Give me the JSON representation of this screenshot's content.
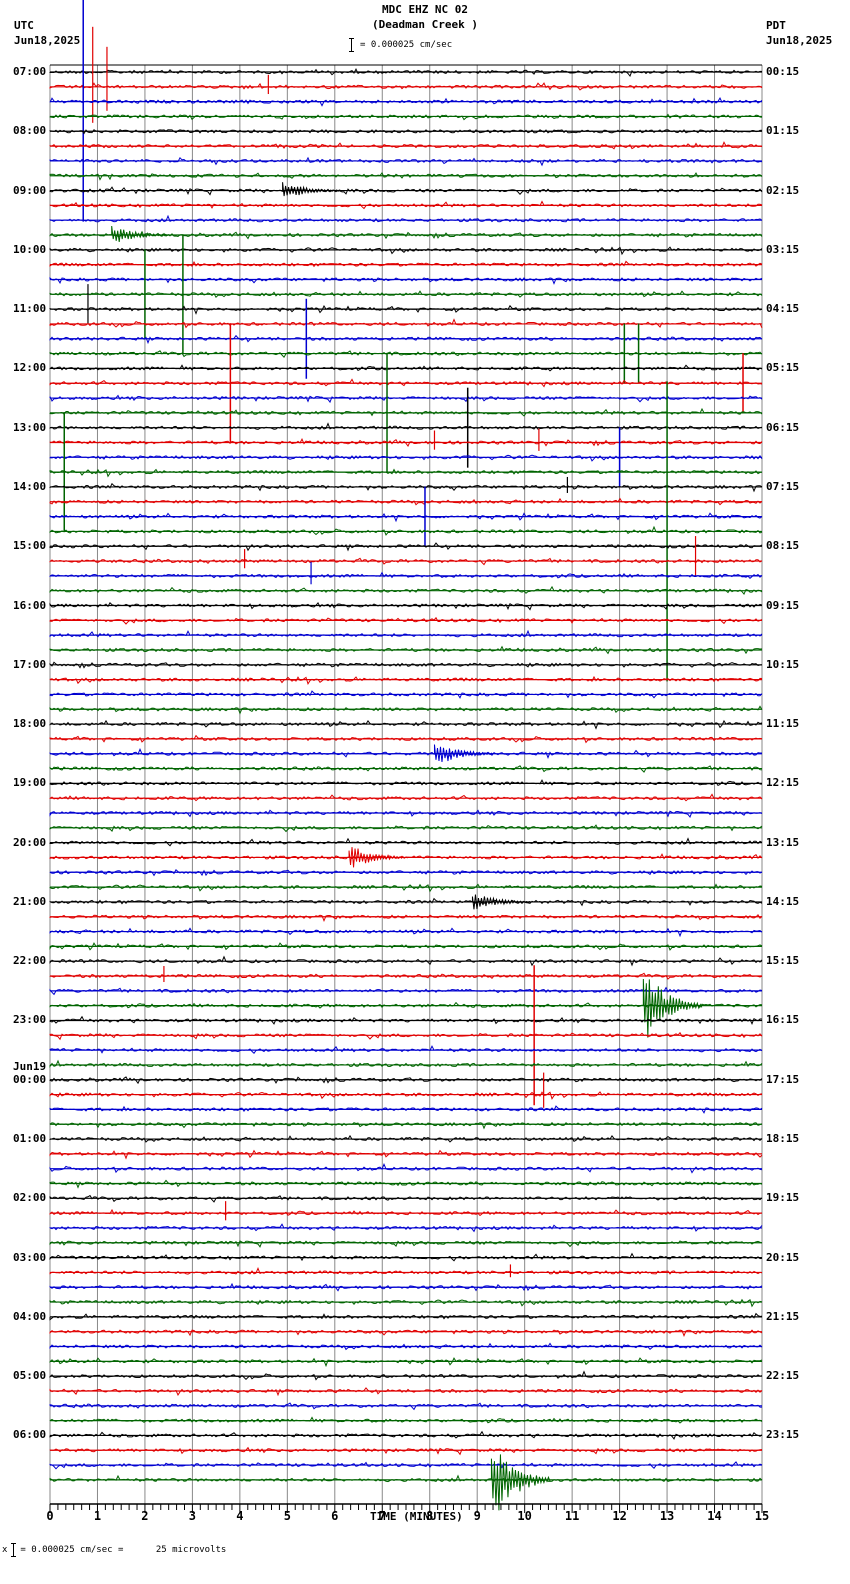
{
  "header": {
    "station": "MDC EHZ NC 02",
    "location": "(Deadman Creek )",
    "left_tz": "UTC",
    "left_date": "Jun18,2025",
    "right_tz": "PDT",
    "right_date": "Jun18,2025",
    "scale_text": "= 0.000025 cm/sec"
  },
  "footer": {
    "prefix": "x",
    "scale_text": "= 0.000025 cm/sec =      25 microvolts"
  },
  "colors": {
    "trace_cycle": [
      "#000000",
      "#e00000",
      "#0000d0",
      "#006400"
    ],
    "grid": "#888888",
    "axis": "#000000"
  },
  "chart_data": {
    "type": "line",
    "title": "MDC EHZ NC 02 (Deadman Creek )",
    "subtitle": "= 0.000025 cm/sec",
    "xlabel": "TIME (MINUTES)",
    "ylabel": "",
    "xlim": [
      0,
      15
    ],
    "x_ticks": [
      "0",
      "1",
      "2",
      "3",
      "4",
      "5",
      "6",
      "7",
      "8",
      "9",
      "10",
      "11",
      "12",
      "13",
      "14",
      "15"
    ],
    "minor_tick_seconds": 10,
    "traces_per_hour": 4,
    "trace_minutes": 15,
    "num_traces": 96,
    "grid": true,
    "left_labels": [
      {
        "label": "07:00",
        "trace": 0
      },
      {
        "label": "08:00",
        "trace": 4
      },
      {
        "label": "09:00",
        "trace": 8
      },
      {
        "label": "10:00",
        "trace": 12
      },
      {
        "label": "11:00",
        "trace": 16
      },
      {
        "label": "12:00",
        "trace": 20
      },
      {
        "label": "13:00",
        "trace": 24
      },
      {
        "label": "14:00",
        "trace": 28
      },
      {
        "label": "15:00",
        "trace": 32
      },
      {
        "label": "16:00",
        "trace": 36
      },
      {
        "label": "17:00",
        "trace": 40
      },
      {
        "label": "18:00",
        "trace": 44
      },
      {
        "label": "19:00",
        "trace": 48
      },
      {
        "label": "20:00",
        "trace": 52
      },
      {
        "label": "21:00",
        "trace": 56
      },
      {
        "label": "22:00",
        "trace": 60
      },
      {
        "label": "23:00",
        "trace": 64
      },
      {
        "label": "00:00",
        "trace": 68,
        "date": "Jun19"
      },
      {
        "label": "01:00",
        "trace": 72
      },
      {
        "label": "02:00",
        "trace": 76
      },
      {
        "label": "03:00",
        "trace": 80
      },
      {
        "label": "04:00",
        "trace": 84
      },
      {
        "label": "05:00",
        "trace": 88
      },
      {
        "label": "06:00",
        "trace": 92
      }
    ],
    "right_labels": [
      {
        "label": "00:15",
        "trace": 0
      },
      {
        "label": "01:15",
        "trace": 4
      },
      {
        "label": "02:15",
        "trace": 8
      },
      {
        "label": "03:15",
        "trace": 12
      },
      {
        "label": "04:15",
        "trace": 16
      },
      {
        "label": "05:15",
        "trace": 20
      },
      {
        "label": "06:15",
        "trace": 24
      },
      {
        "label": "07:15",
        "trace": 28
      },
      {
        "label": "08:15",
        "trace": 32
      },
      {
        "label": "09:15",
        "trace": 36
      },
      {
        "label": "10:15",
        "trace": 40
      },
      {
        "label": "11:15",
        "trace": 44
      },
      {
        "label": "12:15",
        "trace": 48
      },
      {
        "label": "13:15",
        "trace": 52
      },
      {
        "label": "14:15",
        "trace": 56
      },
      {
        "label": "15:15",
        "trace": 60
      },
      {
        "label": "16:15",
        "trace": 64
      },
      {
        "label": "17:15",
        "trace": 68
      },
      {
        "label": "18:15",
        "trace": 72
      },
      {
        "label": "19:15",
        "trace": 76
      },
      {
        "label": "20:15",
        "trace": 80
      },
      {
        "label": "21:15",
        "trace": 84
      },
      {
        "label": "22:15",
        "trace": 88
      },
      {
        "label": "23:15",
        "trace": 92
      }
    ],
    "events": [
      {
        "trace": 1,
        "minute": 0.9,
        "amp": 60,
        "kind": "spike"
      },
      {
        "trace": 1,
        "minute": 1.2,
        "amp": 40,
        "kind": "spike"
      },
      {
        "trace": 1,
        "minute": 4.6,
        "amp": 12,
        "kind": "spike"
      },
      {
        "trace": 2,
        "minute": 0.7,
        "amp": 120,
        "kind": "longspike"
      },
      {
        "trace": 8,
        "minute": 4.9,
        "amp": 10,
        "kind": "burst"
      },
      {
        "trace": 11,
        "minute": 1.3,
        "amp": 10,
        "kind": "burst"
      },
      {
        "trace": 16,
        "minute": 0.8,
        "amp": 25,
        "kind": "spike"
      },
      {
        "trace": 15,
        "minute": 2.8,
        "amp": 60,
        "kind": "longspike"
      },
      {
        "trace": 15,
        "minute": 2.0,
        "amp": 45,
        "kind": "longspike"
      },
      {
        "trace": 18,
        "minute": 5.4,
        "amp": 40,
        "kind": "longspike"
      },
      {
        "trace": 19,
        "minute": 12.1,
        "amp": 30,
        "kind": "longspike"
      },
      {
        "trace": 19,
        "minute": 12.4,
        "amp": 30,
        "kind": "longspike"
      },
      {
        "trace": 21,
        "minute": 3.8,
        "amp": 60,
        "kind": "longspike"
      },
      {
        "trace": 21,
        "minute": 14.6,
        "amp": 30,
        "kind": "longspike"
      },
      {
        "trace": 23,
        "minute": 7.1,
        "amp": 60,
        "kind": "longspike"
      },
      {
        "trace": 24,
        "minute": 8.8,
        "amp": 40,
        "kind": "longspike"
      },
      {
        "trace": 25,
        "minute": 8.1,
        "amp": 12,
        "kind": "spike"
      },
      {
        "trace": 25,
        "minute": 10.3,
        "amp": 14,
        "kind": "spike"
      },
      {
        "trace": 26,
        "minute": 12.0,
        "amp": 30,
        "kind": "longspike"
      },
      {
        "trace": 27,
        "minute": 0.3,
        "amp": 60,
        "kind": "longspike"
      },
      {
        "trace": 28,
        "minute": 10.9,
        "amp": 10,
        "kind": "spike"
      },
      {
        "trace": 30,
        "minute": 7.9,
        "amp": 30,
        "kind": "longspike"
      },
      {
        "trace": 31,
        "minute": 13.0,
        "amp": 150,
        "kind": "longspike"
      },
      {
        "trace": 33,
        "minute": 4.1,
        "amp": 12,
        "kind": "spike"
      },
      {
        "trace": 33,
        "minute": 13.6,
        "amp": 25,
        "kind": "spike"
      },
      {
        "trace": 34,
        "minute": 5.5,
        "amp": 14,
        "kind": "spike"
      },
      {
        "trace": 46,
        "minute": 8.1,
        "amp": 14,
        "kind": "burst"
      },
      {
        "trace": 53,
        "minute": 6.3,
        "amp": 14,
        "kind": "burst"
      },
      {
        "trace": 56,
        "minute": 8.9,
        "amp": 10,
        "kind": "burst"
      },
      {
        "trace": 61,
        "minute": 2.4,
        "amp": 10,
        "kind": "spike"
      },
      {
        "trace": 63,
        "minute": 12.5,
        "amp": 40,
        "kind": "burst"
      },
      {
        "trace": 65,
        "minute": 10.2,
        "amp": 70,
        "kind": "longspike"
      },
      {
        "trace": 69,
        "minute": 10.4,
        "amp": 22,
        "kind": "spike"
      },
      {
        "trace": 77,
        "minute": 3.7,
        "amp": 12,
        "kind": "spike"
      },
      {
        "trace": 81,
        "minute": 9.7,
        "amp": 8,
        "kind": "spike"
      },
      {
        "trace": 95,
        "minute": 9.3,
        "amp": 45,
        "kind": "burst"
      }
    ]
  }
}
